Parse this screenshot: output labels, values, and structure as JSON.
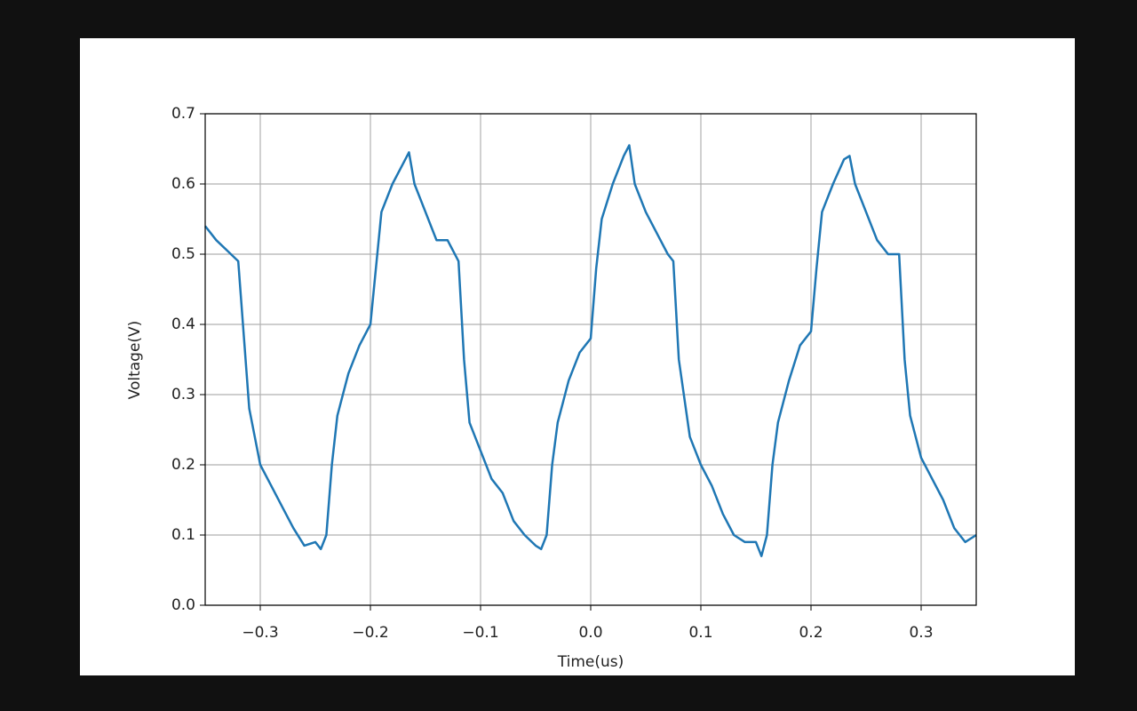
{
  "chart_data": {
    "type": "line",
    "xlabel": "Time(us)",
    "ylabel": "Voltage(V)",
    "x": [
      -0.35,
      -0.34,
      -0.33,
      -0.32,
      -0.31,
      -0.3,
      -0.29,
      -0.28,
      -0.27,
      -0.26,
      -0.25,
      -0.245,
      -0.24,
      -0.235,
      -0.23,
      -0.22,
      -0.21,
      -0.2,
      -0.195,
      -0.19,
      -0.18,
      -0.17,
      -0.165,
      -0.16,
      -0.15,
      -0.14,
      -0.13,
      -0.12,
      -0.115,
      -0.11,
      -0.1,
      -0.09,
      -0.08,
      -0.07,
      -0.06,
      -0.05,
      -0.045,
      -0.04,
      -0.035,
      -0.03,
      -0.02,
      -0.01,
      0.0,
      0.005,
      0.01,
      0.02,
      0.03,
      0.035,
      0.04,
      0.05,
      0.06,
      0.07,
      0.075,
      0.08,
      0.09,
      0.1,
      0.11,
      0.12,
      0.13,
      0.14,
      0.15,
      0.155,
      0.16,
      0.165,
      0.17,
      0.18,
      0.19,
      0.2,
      0.205,
      0.21,
      0.22,
      0.23,
      0.235,
      0.24,
      0.25,
      0.26,
      0.27,
      0.28,
      0.285,
      0.29,
      0.3,
      0.31,
      0.32,
      0.33,
      0.34,
      0.35
    ],
    "series": [
      {
        "name": "Voltage",
        "color": "#1f77b4",
        "values": [
          0.54,
          0.52,
          0.505,
          0.49,
          0.28,
          0.2,
          0.17,
          0.14,
          0.11,
          0.085,
          0.09,
          0.08,
          0.1,
          0.2,
          0.27,
          0.33,
          0.37,
          0.4,
          0.48,
          0.56,
          0.6,
          0.63,
          0.645,
          0.6,
          0.56,
          0.52,
          0.52,
          0.49,
          0.35,
          0.26,
          0.22,
          0.18,
          0.16,
          0.12,
          0.1,
          0.085,
          0.08,
          0.1,
          0.2,
          0.26,
          0.32,
          0.36,
          0.38,
          0.48,
          0.55,
          0.6,
          0.64,
          0.655,
          0.6,
          0.56,
          0.53,
          0.5,
          0.49,
          0.35,
          0.24,
          0.2,
          0.17,
          0.13,
          0.1,
          0.09,
          0.09,
          0.07,
          0.1,
          0.2,
          0.26,
          0.32,
          0.37,
          0.39,
          0.48,
          0.56,
          0.6,
          0.635,
          0.64,
          0.6,
          0.56,
          0.52,
          0.5,
          0.5,
          0.35,
          0.27,
          0.21,
          0.18,
          0.15,
          0.11,
          0.09,
          0.1
        ]
      }
    ],
    "xlim": [
      -0.35,
      0.35
    ],
    "xticks": [
      {
        "value": -0.3,
        "label": "−0.3"
      },
      {
        "value": -0.2,
        "label": "−0.2"
      },
      {
        "value": -0.1,
        "label": "−0.1"
      },
      {
        "value": 0,
        "label": "0.0"
      },
      0.1,
      0.2,
      0.3
    ],
    "ylim": [
      0,
      0.7
    ],
    "yticks": [
      {
        "value": 0,
        "label": "0.0"
      },
      0.1,
      0.2,
      0.3,
      0.4,
      0.5,
      0.6,
      0.7
    ],
    "grid": true
  }
}
